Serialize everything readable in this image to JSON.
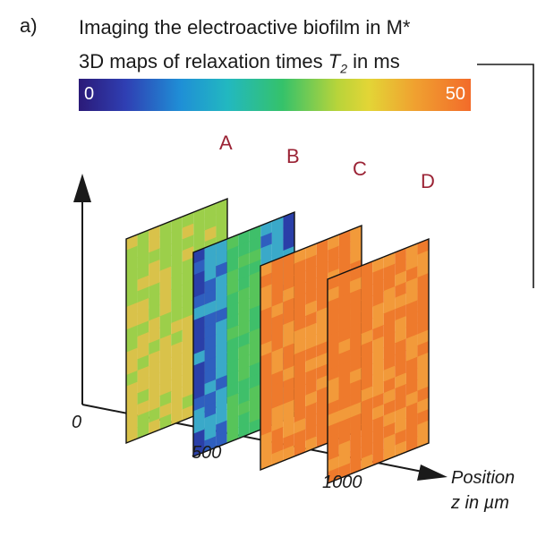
{
  "panel_label": "a)",
  "title": "Imaging the electroactive biofilm in M*",
  "subtitle_prefix": "3D maps of relaxation times ",
  "subtitle_symbol": "T",
  "subtitle_sub": "2",
  "subtitle_suffix": " in ms",
  "colorbar": {
    "min_label": "0",
    "max_label": "50"
  },
  "axis": {
    "origin_label": "0",
    "tick_labels": [
      "500",
      "1000"
    ],
    "x_label_line1": "Position",
    "x_label_line2": "z in µm"
  },
  "slices": [
    {
      "label": "A",
      "base_color": "#d9c24a",
      "accent": "#9ccf4a"
    },
    {
      "label": "B",
      "base_color": "#3aa9c9",
      "accent": "#2f5fbf"
    },
    {
      "label": "C",
      "base_color": "#ee7a2c",
      "accent": "#f29a3a"
    },
    {
      "label": "D",
      "base_color": "#ee7a2c",
      "accent": "#f29a3a"
    }
  ]
}
